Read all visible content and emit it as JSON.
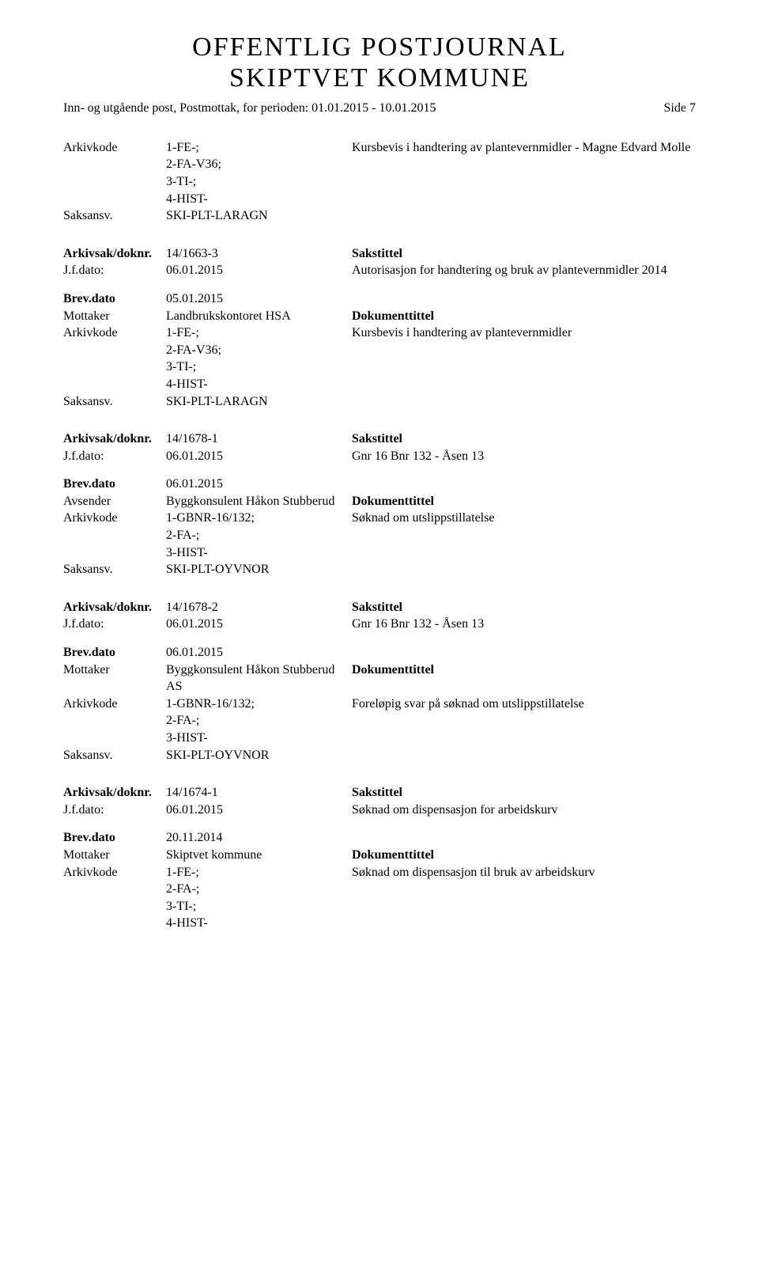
{
  "header": {
    "title_line1": "OFFENTLIG POSTJOURNAL",
    "title_line2": "SKIPTVET KOMMUNE",
    "subtitle": "Inn- og utgående post, Postmottak, for perioden: 01.01.2015 - 10.01.2015",
    "page_label": "Side 7"
  },
  "labels": {
    "arkivkode": "Arkivkode",
    "saksansv": "Saksansv.",
    "arkivsak": "Arkivsak/doknr.",
    "jfdato": "J.f.dato:",
    "brevdato": "Brev.dato",
    "mottaker": "Mottaker",
    "avsender": "Avsender",
    "sakstittel": "Sakstittel",
    "dokumenttittel": "Dokumenttittel"
  },
  "blocks": [
    {
      "arkivkode": "1-FE-;\n2-FA-V36;\n3-TI-;\n4-HIST-",
      "arkivkode_desc": "Kursbevis i handtering av plantevernmidler - Magne Edvard Molle",
      "saksansv": "SKI-PLT-LARAGN"
    }
  ],
  "entries": [
    {
      "arkivsak": "14/1663-3",
      "jfdato": "06.01.2015",
      "sakstittel": "Autorisasjon for handtering og bruk av plantevernmidler 2014",
      "brevdato": "05.01.2015",
      "party_label": "Mottaker",
      "party": "Landbrukskontoret HSA",
      "arkivkode": "1-FE-;\n2-FA-V36;\n3-TI-;\n4-HIST-",
      "dokumenttittel": "Kursbevis i handtering av plantevernmidler",
      "saksansv": "SKI-PLT-LARAGN"
    },
    {
      "arkivsak": "14/1678-1",
      "jfdato": "06.01.2015",
      "sakstittel": "Gnr 16 Bnr 132 - Åsen 13",
      "brevdato": "06.01.2015",
      "party_label": "Avsender",
      "party": "Byggkonsulent Håkon Stubberud",
      "arkivkode": "1-GBNR-16/132;\n2-FA-;\n3-HIST-",
      "dokumenttittel": "Søknad om utslippstillatelse",
      "saksansv": "SKI-PLT-OYVNOR"
    },
    {
      "arkivsak": "14/1678-2",
      "jfdato": "06.01.2015",
      "sakstittel": "Gnr 16 Bnr 132 - Åsen 13",
      "brevdato": "06.01.2015",
      "party_label": "Mottaker",
      "party": "Byggkonsulent Håkon Stubberud AS",
      "arkivkode": "1-GBNR-16/132;\n2-FA-;\n3-HIST-",
      "dokumenttittel": "Foreløpig svar på søknad om utslippstillatelse",
      "saksansv": "SKI-PLT-OYVNOR"
    },
    {
      "arkivsak": "14/1674-1",
      "jfdato": "06.01.2015",
      "sakstittel": "Søknad om dispensasjon for arbeidskurv",
      "brevdato": "20.11.2014",
      "party_label": "Mottaker",
      "party": "Skiptvet kommune",
      "arkivkode": "1-FE-;\n2-FA-;\n3-TI-;\n4-HIST-",
      "dokumenttittel": "Søknad om dispensasjon til bruk av arbeidskurv",
      "saksansv": ""
    }
  ]
}
